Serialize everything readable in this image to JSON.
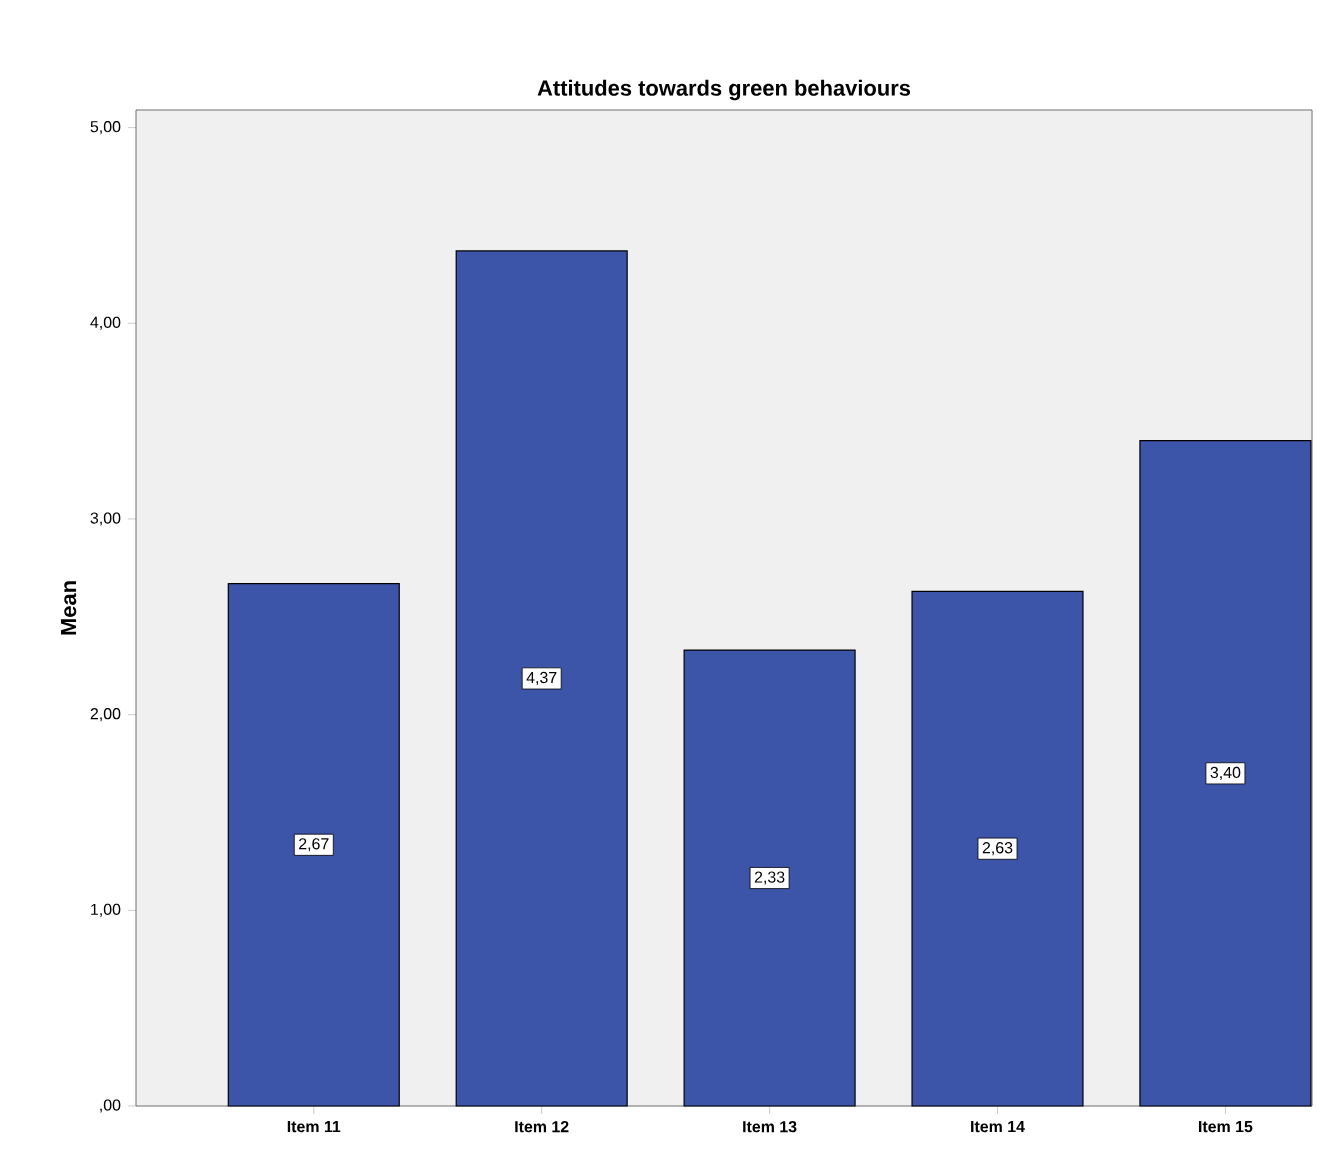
{
  "chart_data": {
    "type": "bar",
    "title": "Attitudes towards green behaviours",
    "ylabel": "Mean",
    "categories": [
      "Item 11",
      "Item 12",
      "Item 13",
      "Item 14",
      "Item 15"
    ],
    "values": [
      2.67,
      4.37,
      2.33,
      2.63,
      3.4
    ],
    "value_labels": [
      "2,67",
      "4,37",
      "2,33",
      "2,63",
      "3,40"
    ],
    "color": "#3d55a8",
    "ylim": [
      0,
      5.09
    ],
    "yticks": [
      {
        "value": 0,
        "label": ",00"
      },
      {
        "value": 1,
        "label": "1,00"
      },
      {
        "value": 2,
        "label": "2,00"
      },
      {
        "value": 3,
        "label": "3,00"
      },
      {
        "value": 4,
        "label": "4,00"
      },
      {
        "value": 5,
        "label": "5,00"
      }
    ],
    "grid": false
  }
}
